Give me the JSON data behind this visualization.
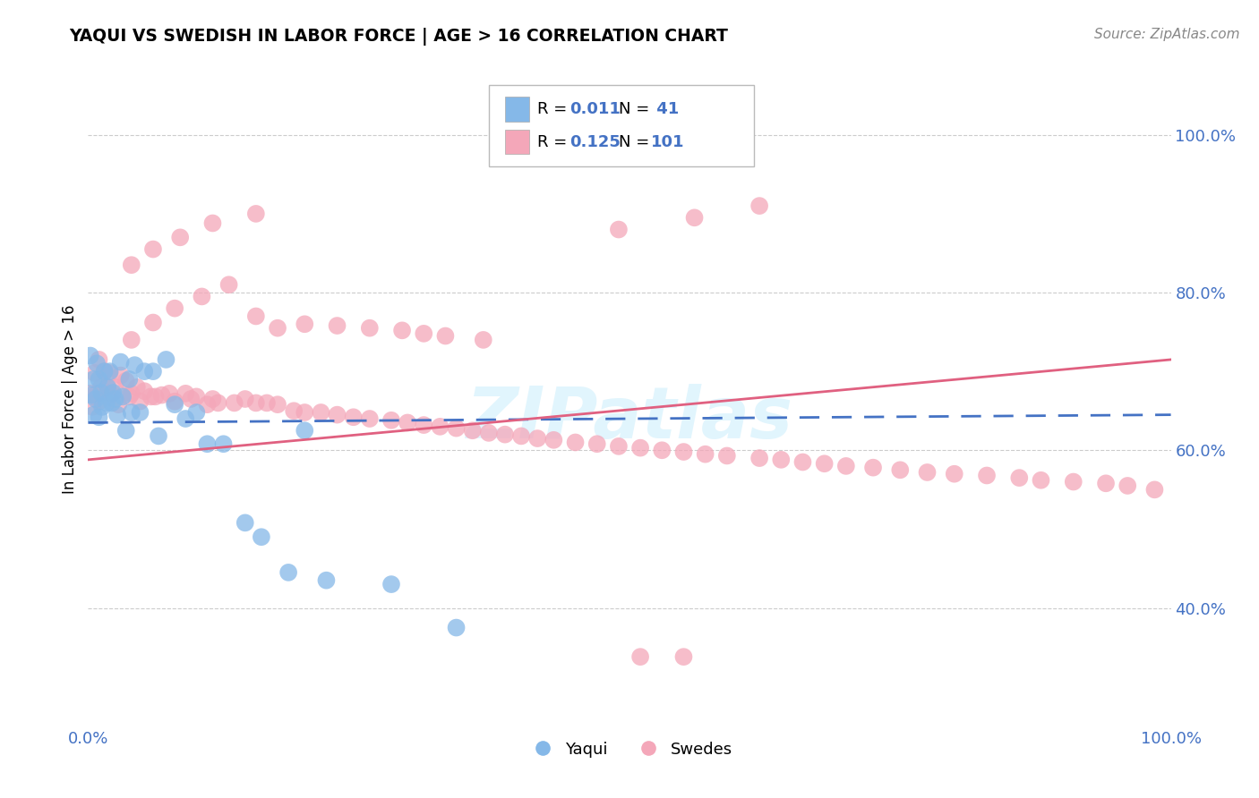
{
  "title": "YAQUI VS SWEDISH IN LABOR FORCE | AGE > 16 CORRELATION CHART",
  "source": "Source: ZipAtlas.com",
  "ylabel": "In Labor Force | Age > 16",
  "y_tick_labels_right": [
    "40.0%",
    "60.0%",
    "80.0%",
    "100.0%"
  ],
  "x_tick_labels": [
    "0.0%",
    "100.0%"
  ],
  "legend_yaqui_R": "0.011",
  "legend_yaqui_N": " 41",
  "legend_swedes_R": "0.125",
  "legend_swedes_N": "101",
  "legend_label1": "Yaqui",
  "legend_label2": "Swedes",
  "color_yaqui": "#85b8e8",
  "color_swedes": "#f4a7b9",
  "color_trendline_yaqui": "#4472c4",
  "color_trendline_swedes": "#e06080",
  "watermark": "ZIPatlas",
  "xlim": [
    0.0,
    1.0
  ],
  "ylim": [
    0.25,
    1.08
  ],
  "yticks": [
    0.4,
    0.6,
    0.8,
    1.0
  ],
  "xticks": [
    0.0,
    1.0
  ],
  "yaqui_x": [
    0.002,
    0.003,
    0.005,
    0.005,
    0.007,
    0.008,
    0.01,
    0.01,
    0.012,
    0.013,
    0.015,
    0.017,
    0.018,
    0.02,
    0.022,
    0.023,
    0.025,
    0.027,
    0.03,
    0.032,
    0.035,
    0.038,
    0.04,
    0.043,
    0.048,
    0.052,
    0.06,
    0.065,
    0.072,
    0.08,
    0.09,
    0.1,
    0.11,
    0.125,
    0.145,
    0.16,
    0.185,
    0.2,
    0.22,
    0.28,
    0.34
  ],
  "yaqui_y": [
    0.72,
    0.67,
    0.69,
    0.645,
    0.665,
    0.71,
    0.69,
    0.642,
    0.673,
    0.655,
    0.7,
    0.66,
    0.68,
    0.7,
    0.66,
    0.673,
    0.665,
    0.645,
    0.712,
    0.668,
    0.625,
    0.69,
    0.648,
    0.708,
    0.648,
    0.7,
    0.7,
    0.618,
    0.715,
    0.658,
    0.64,
    0.648,
    0.608,
    0.608,
    0.508,
    0.49,
    0.445,
    0.625,
    0.435,
    0.43,
    0.375
  ],
  "swedes_x": [
    0.002,
    0.004,
    0.006,
    0.008,
    0.01,
    0.01,
    0.012,
    0.015,
    0.018,
    0.02,
    0.022,
    0.025,
    0.028,
    0.03,
    0.035,
    0.038,
    0.04,
    0.045,
    0.048,
    0.052,
    0.058,
    0.062,
    0.068,
    0.075,
    0.08,
    0.09,
    0.095,
    0.1,
    0.11,
    0.115,
    0.12,
    0.135,
    0.145,
    0.155,
    0.165,
    0.175,
    0.19,
    0.2,
    0.215,
    0.23,
    0.245,
    0.26,
    0.28,
    0.295,
    0.31,
    0.325,
    0.34,
    0.355,
    0.37,
    0.385,
    0.4,
    0.415,
    0.43,
    0.45,
    0.47,
    0.49,
    0.51,
    0.53,
    0.55,
    0.57,
    0.59,
    0.62,
    0.64,
    0.66,
    0.68,
    0.7,
    0.725,
    0.75,
    0.775,
    0.8,
    0.83,
    0.86,
    0.88,
    0.91,
    0.94,
    0.96,
    0.985,
    0.04,
    0.06,
    0.08,
    0.105,
    0.13,
    0.155,
    0.175,
    0.2,
    0.23,
    0.26,
    0.29,
    0.31,
    0.33,
    0.365,
    0.04,
    0.06,
    0.085,
    0.115,
    0.155,
    0.49,
    0.56,
    0.62,
    0.51,
    0.55
  ],
  "swedes_y": [
    0.672,
    0.655,
    0.698,
    0.672,
    0.715,
    0.662,
    0.68,
    0.7,
    0.68,
    0.698,
    0.672,
    0.68,
    0.658,
    0.695,
    0.688,
    0.668,
    0.672,
    0.68,
    0.662,
    0.675,
    0.668,
    0.668,
    0.67,
    0.672,
    0.662,
    0.672,
    0.665,
    0.668,
    0.658,
    0.665,
    0.66,
    0.66,
    0.665,
    0.66,
    0.66,
    0.658,
    0.65,
    0.648,
    0.648,
    0.645,
    0.642,
    0.64,
    0.638,
    0.635,
    0.632,
    0.63,
    0.628,
    0.625,
    0.622,
    0.62,
    0.618,
    0.615,
    0.613,
    0.61,
    0.608,
    0.605,
    0.603,
    0.6,
    0.598,
    0.595,
    0.593,
    0.59,
    0.588,
    0.585,
    0.583,
    0.58,
    0.578,
    0.575,
    0.572,
    0.57,
    0.568,
    0.565,
    0.562,
    0.56,
    0.558,
    0.555,
    0.55,
    0.74,
    0.762,
    0.78,
    0.795,
    0.81,
    0.77,
    0.755,
    0.76,
    0.758,
    0.755,
    0.752,
    0.748,
    0.745,
    0.74,
    0.835,
    0.855,
    0.87,
    0.888,
    0.9,
    0.88,
    0.895,
    0.91,
    0.338,
    0.338
  ],
  "trendline_swedes_y0": 0.588,
  "trendline_swedes_y1": 0.715,
  "trendline_yaqui_y0": 0.635,
  "trendline_yaqui_y1": 0.645
}
